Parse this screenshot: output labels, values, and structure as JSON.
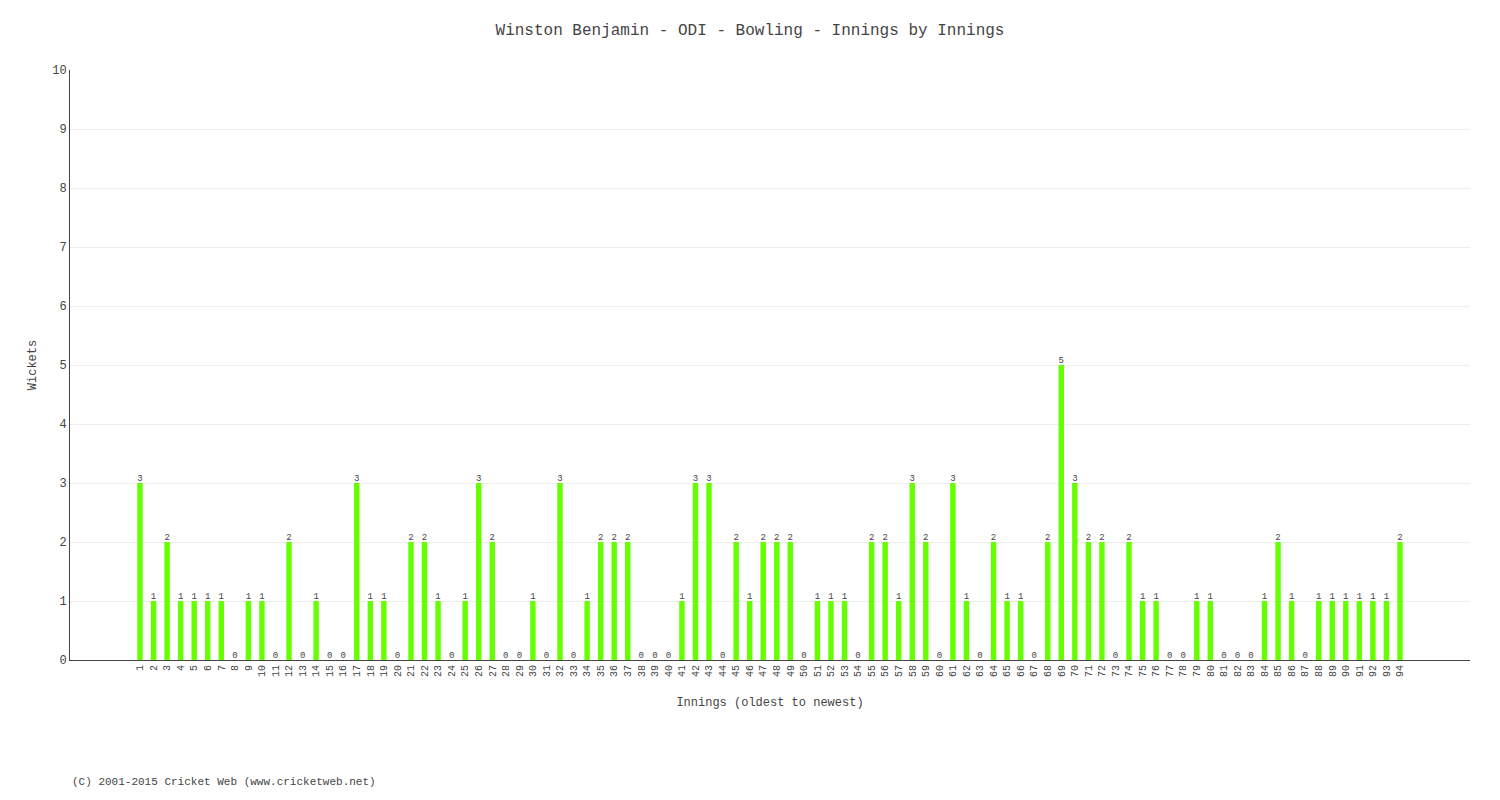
{
  "chart_data": {
    "type": "bar",
    "title": "Winston Benjamin - ODI - Bowling - Innings by Innings",
    "xlabel": "Innings (oldest to newest)",
    "ylabel": "Wickets",
    "categories": [
      "1",
      "2",
      "3",
      "4",
      "5",
      "6",
      "7",
      "8",
      "9",
      "10",
      "11",
      "12",
      "13",
      "14",
      "15",
      "16",
      "17",
      "18",
      "19",
      "20",
      "21",
      "22",
      "23",
      "24",
      "25",
      "26",
      "27",
      "28",
      "29",
      "30",
      "31",
      "32",
      "33",
      "34",
      "35",
      "36",
      "37",
      "38",
      "39",
      "40",
      "41",
      "42",
      "43",
      "44",
      "45",
      "46",
      "47",
      "48",
      "49",
      "50",
      "51",
      "52",
      "53",
      "54",
      "55",
      "56",
      "57",
      "58",
      "59",
      "60",
      "61",
      "62",
      "63",
      "64",
      "65",
      "66",
      "67",
      "68",
      "69",
      "70",
      "71",
      "72",
      "73",
      "74",
      "75",
      "76",
      "77",
      "78",
      "79",
      "80",
      "81",
      "82",
      "83",
      "84",
      "85",
      "86",
      "87",
      "88",
      "89",
      "90",
      "91",
      "92",
      "93",
      "94"
    ],
    "values": [
      3,
      1,
      2,
      1,
      1,
      1,
      1,
      0,
      1,
      1,
      0,
      2,
      0,
      1,
      0,
      0,
      3,
      1,
      1,
      0,
      2,
      2,
      1,
      0,
      1,
      3,
      2,
      0,
      0,
      1,
      0,
      3,
      0,
      1,
      2,
      2,
      2,
      0,
      0,
      0,
      1,
      3,
      3,
      0,
      2,
      1,
      2,
      2,
      2,
      0,
      1,
      1,
      1,
      0,
      2,
      2,
      1,
      3,
      2,
      0,
      3,
      1,
      0,
      2,
      1,
      1,
      0,
      2,
      5,
      3,
      2,
      2,
      0,
      2,
      1,
      1,
      0,
      0,
      1,
      1,
      0,
      0,
      0,
      1,
      2,
      1,
      0,
      1,
      1,
      1,
      1,
      1,
      1,
      2
    ],
    "color": "#66ff00",
    "ylim": [
      0,
      10
    ],
    "yticks": [
      0,
      1,
      2,
      3,
      4,
      5,
      6,
      7,
      8,
      9,
      10
    ],
    "grid": true,
    "data_labels": true,
    "annotations": [
      "(C) 2001-2015 Cricket Web (www.cricketweb.net)"
    ]
  }
}
